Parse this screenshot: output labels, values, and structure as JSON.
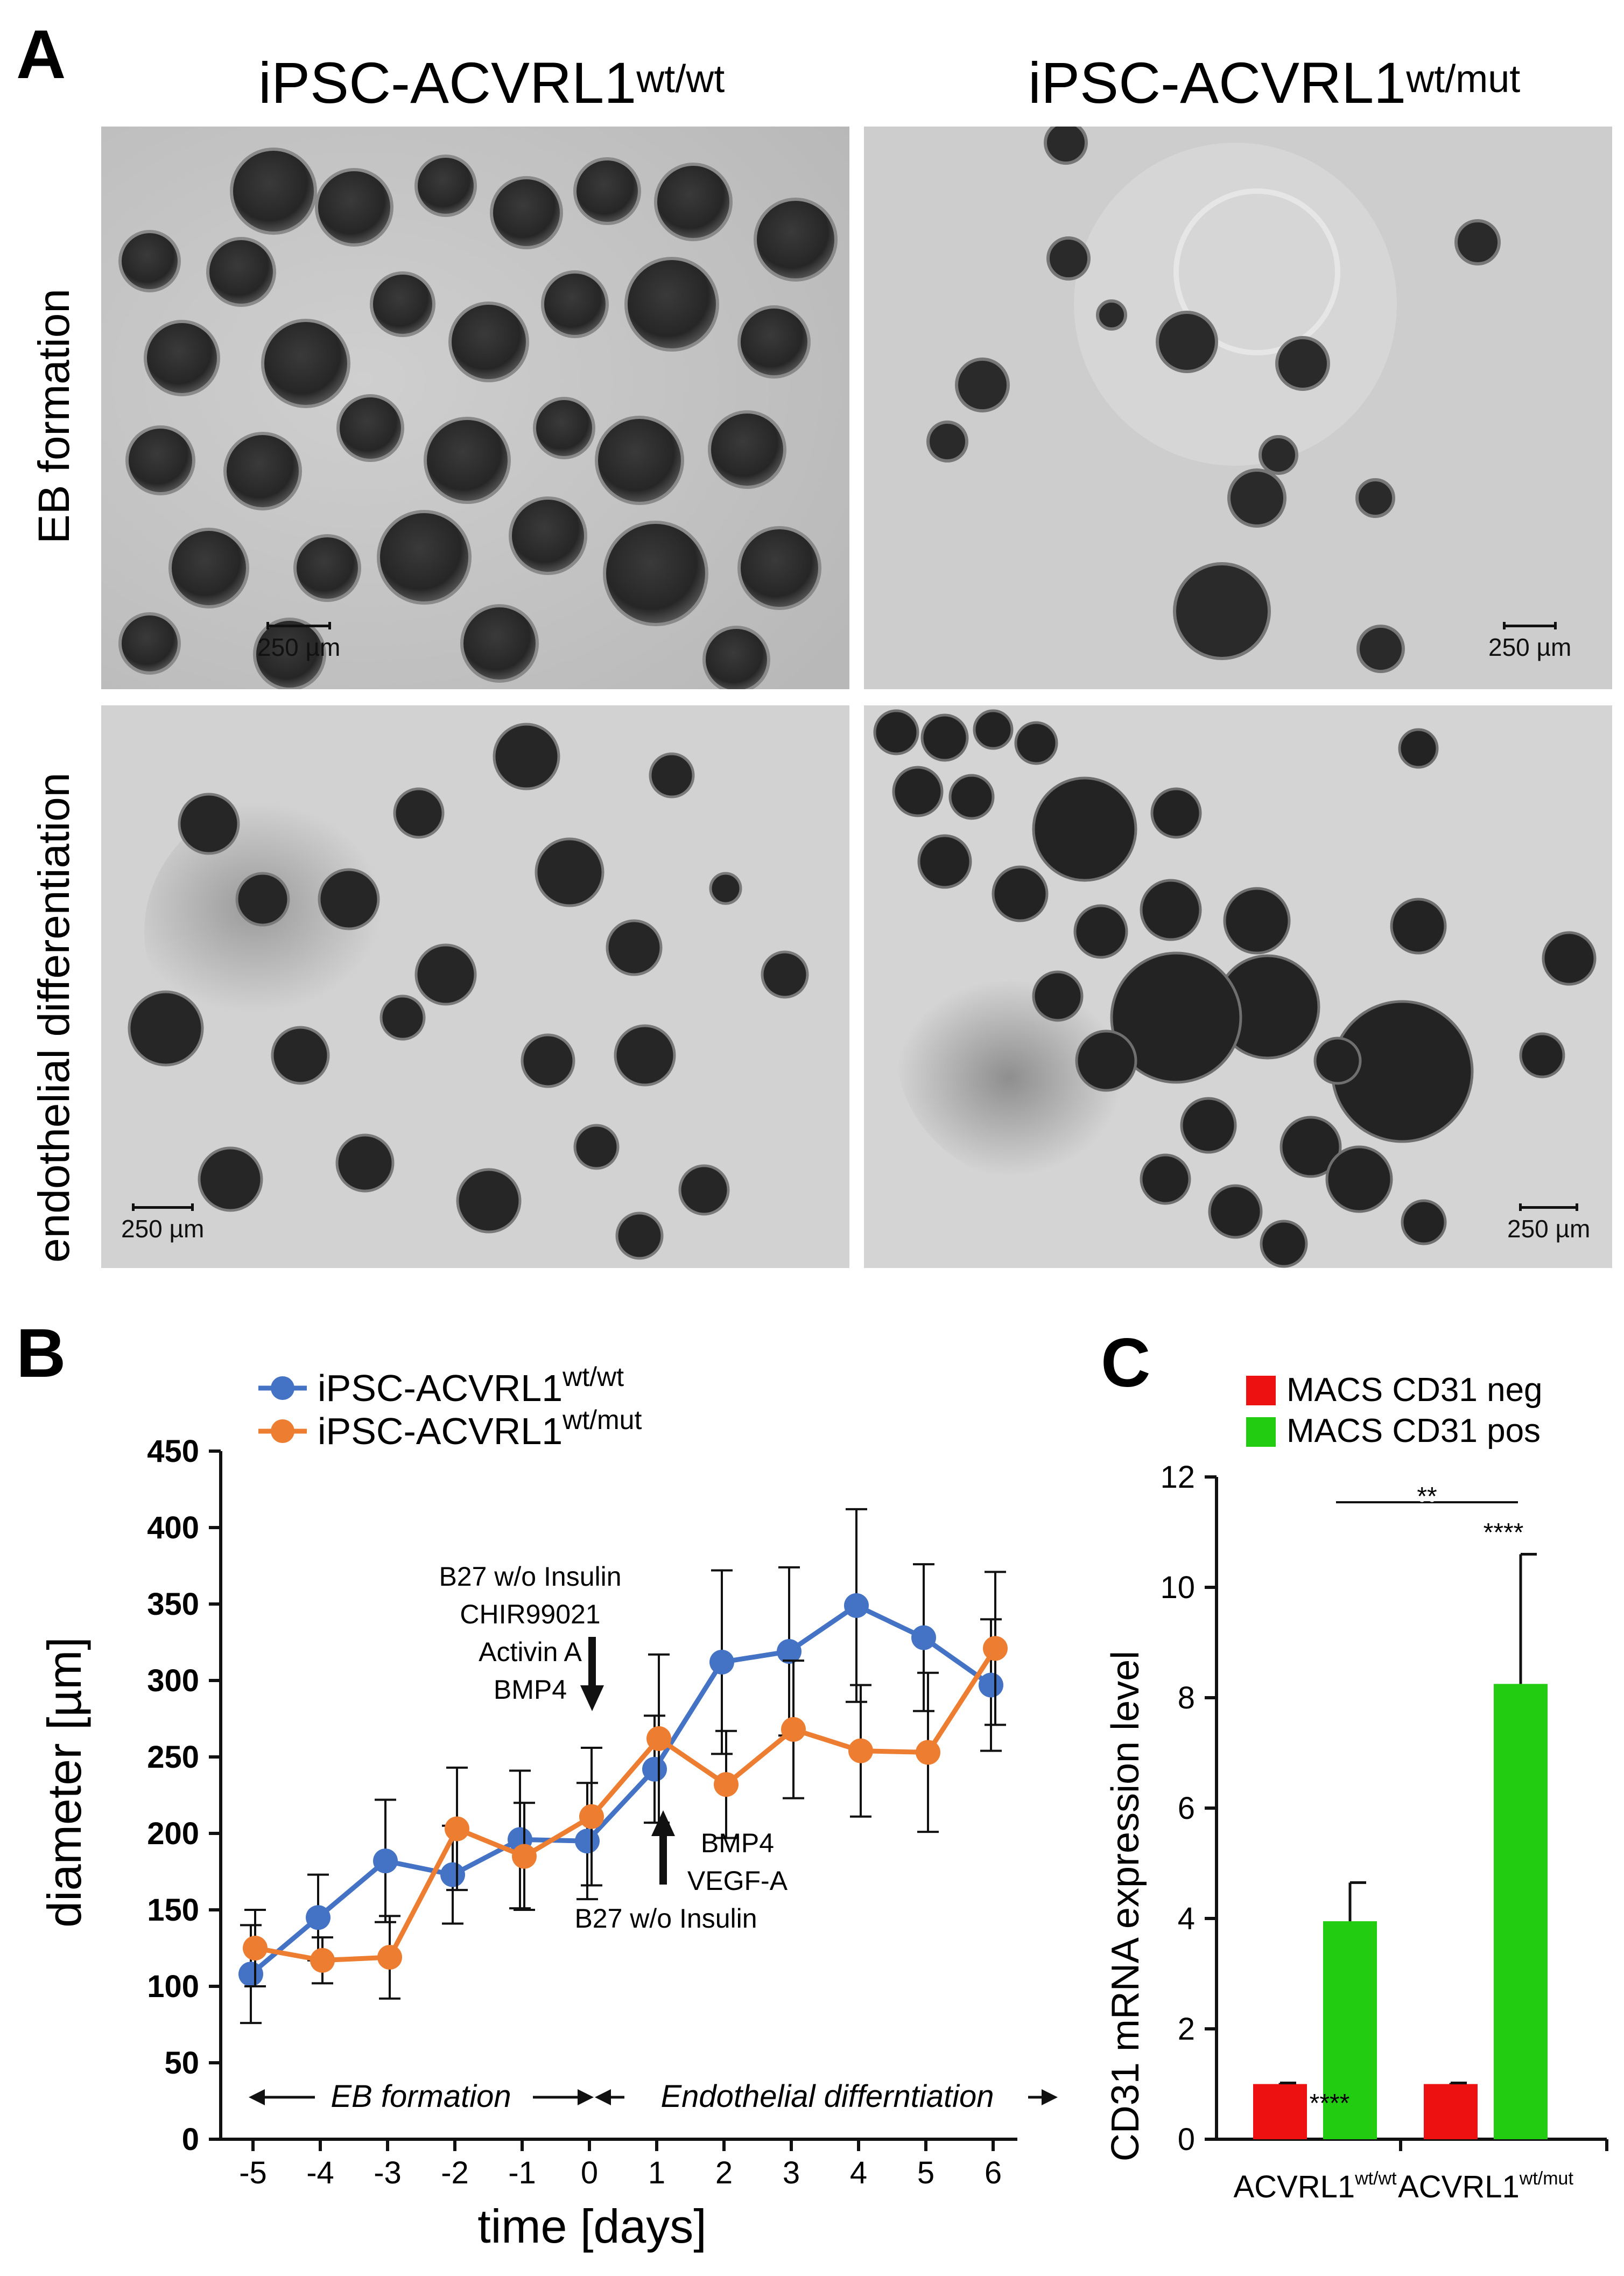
{
  "panel_a": {
    "letter": "A",
    "col_titles": [
      {
        "base": "iPSC-ACVRL1",
        "sup": "wt/wt"
      },
      {
        "base": "iPSC-ACVRL1",
        "sup": "wt/mut"
      }
    ],
    "row_labels": [
      "EB formation",
      "endothelial differentiation"
    ],
    "scalebar_label": "250 µm"
  },
  "panel_b": {
    "letter": "B",
    "annotation_top": [
      "B27 w/o Insulin",
      "CHIR99021",
      "Activin A",
      "BMP4"
    ],
    "annotation_bottom": [
      "BMP4",
      "VEGF-A",
      "B27 w/o Insulin"
    ],
    "phase_labels": [
      "EB formation",
      "Endothelial differntiation"
    ],
    "chart_data": {
      "type": "line",
      "xlabel": "time [days]",
      "ylabel": "diameter [µm]",
      "x": [
        -5,
        -4,
        -3,
        -2,
        -1,
        0,
        1,
        2,
        3,
        4,
        5,
        6
      ],
      "xlim": [
        -5,
        6
      ],
      "ylim": [
        0,
        450
      ],
      "yticks": [
        0,
        50,
        100,
        150,
        200,
        250,
        300,
        350,
        400,
        450
      ],
      "legend_position": "top-left",
      "series": [
        {
          "name": "iPSC-ACVRL1",
          "name_sup": "wt/wt",
          "color": "#4472C4",
          "values": [
            108,
            145,
            182,
            173,
            196,
            195,
            242,
            312,
            319,
            349,
            328,
            297
          ],
          "error": [
            32,
            28,
            40,
            32,
            45,
            38,
            35,
            60,
            55,
            63,
            48,
            43
          ]
        },
        {
          "name": "iPSC-ACVRL1",
          "name_sup": "wt/mut",
          "color": "#ED7D31",
          "values": [
            125,
            117,
            119,
            203,
            185,
            211,
            262,
            232,
            268,
            254,
            253,
            321
          ],
          "error": [
            25,
            15,
            27,
            40,
            35,
            45,
            55,
            35,
            45,
            43,
            52,
            50
          ]
        }
      ]
    }
  },
  "panel_c": {
    "letter": "C",
    "significance": {
      "bracket": "**",
      "group1": "****",
      "group2": "****"
    },
    "chart_data": {
      "type": "bar",
      "ylabel": "CD31 mRNA expression level",
      "ylim": [
        0,
        12
      ],
      "yticks": [
        0,
        2,
        4,
        6,
        8,
        10,
        12
      ],
      "legend_position": "top",
      "categories": [
        {
          "base": "ACVRL1",
          "sup": "wt/wt"
        },
        {
          "base": "ACVRL1",
          "sup": "wt/mut"
        }
      ],
      "series": [
        {
          "name": "MACS CD31 neg",
          "color": "#EE1111",
          "values": [
            1.0,
            1.0
          ],
          "error": [
            0.02,
            0.02
          ]
        },
        {
          "name": "MACS CD31 pos",
          "color": "#22CC11",
          "values": [
            3.95,
            8.25
          ],
          "error": [
            0.7,
            2.35
          ]
        }
      ]
    }
  }
}
